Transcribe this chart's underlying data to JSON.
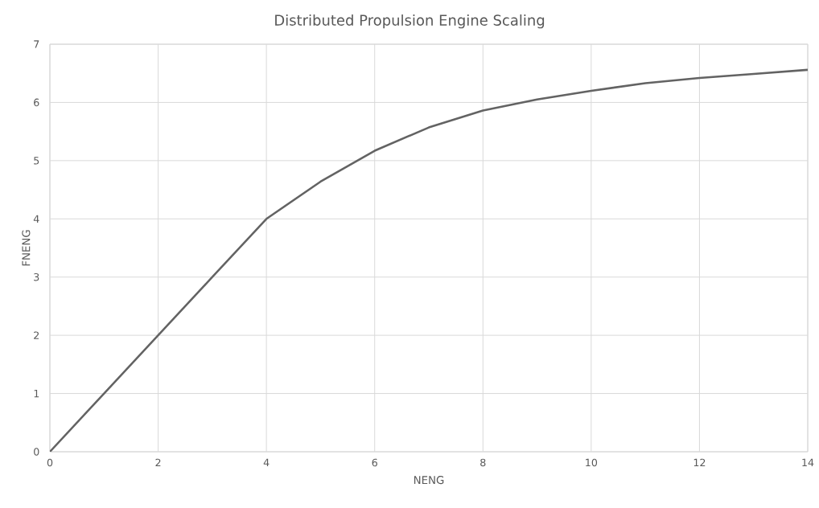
{
  "chart_data": {
    "type": "line",
    "title": "Distributed Propulsion Engine Scaling",
    "xlabel": "NENG",
    "ylabel": "FNENG",
    "x": [
      0,
      1,
      2,
      3,
      4,
      5,
      6,
      7,
      8,
      9,
      10,
      11,
      12,
      13,
      14
    ],
    "series": [
      {
        "color": "#636363",
        "values": [
          0,
          1,
          2,
          3,
          4,
          4.64,
          5.17,
          5.57,
          5.86,
          6.05,
          6.2,
          6.33,
          6.42,
          6.49,
          6.56
        ]
      }
    ],
    "xlim": [
      0,
      14
    ],
    "ylim": [
      0,
      7
    ],
    "xticks": [
      0,
      2,
      4,
      6,
      8,
      10,
      12,
      14
    ],
    "yticks": [
      0,
      1,
      2,
      3,
      4,
      5,
      6,
      7
    ],
    "grid": true,
    "line_style": "solid"
  }
}
